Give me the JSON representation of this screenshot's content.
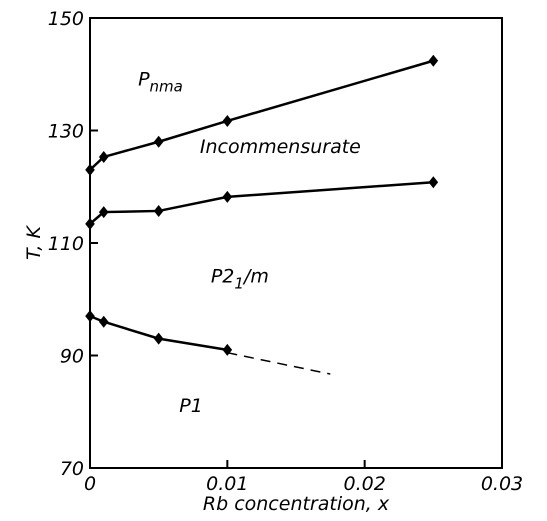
{
  "chart_data": {
    "type": "line",
    "xlabel": "Rb concentration, x",
    "ylabel": "T, K",
    "xlim": [
      0,
      0.03
    ],
    "xticks": [
      0,
      0.01,
      0.02,
      0.03
    ],
    "ylim": [
      70,
      150
    ],
    "yticks": [
      70,
      90,
      110,
      130,
      150
    ],
    "series": [
      {
        "color": "#000000",
        "markers": true,
        "dashed": false,
        "x": [
          0,
          0.001,
          0.005,
          0.01,
          0.025
        ],
        "values": [
          123,
          125.3,
          128,
          131.7,
          142.4
        ]
      },
      {
        "color": "#000000",
        "markers": true,
        "dashed": false,
        "x": [
          0,
          0.001,
          0.005,
          0.01,
          0.025
        ],
        "values": [
          113.4,
          115.5,
          115.7,
          118.2,
          120.8
        ]
      },
      {
        "color": "#000000",
        "markers": true,
        "dashed": false,
        "x": [
          0,
          0.001,
          0.005,
          0.01
        ],
        "values": [
          97,
          96,
          93,
          91
        ]
      },
      {
        "color": "#000000",
        "markers": false,
        "dashed": true,
        "x": [
          0.01,
          0.0175
        ],
        "values": [
          90.5,
          86.7
        ]
      }
    ],
    "annotations": [
      {
        "text": "P",
        "sub": "nma",
        "x": 0.0035,
        "y": 138
      },
      {
        "text": "Incommensurate",
        "x": 0.008,
        "y": 126
      },
      {
        "text": "P2",
        "sub": "1",
        "rest": "/m",
        "x": 0.0088,
        "y": 103
      },
      {
        "text": "P1",
        "x": 0.0065,
        "y": 80
      }
    ]
  }
}
